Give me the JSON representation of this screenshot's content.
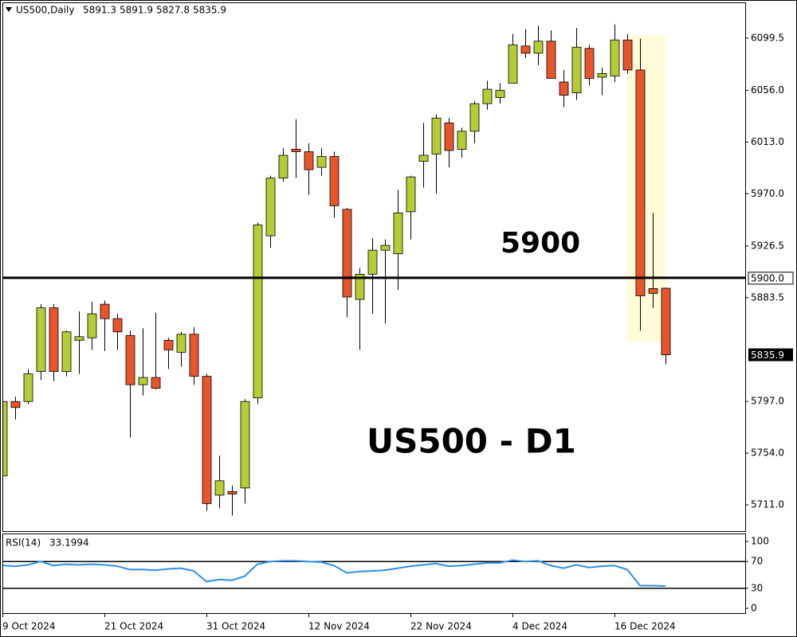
{
  "chart_data": [
    {
      "type": "candlestick",
      "symbol": "US500,Daily",
      "categories": [
        "9 Oct 2024",
        null,
        null,
        null,
        null,
        null,
        null,
        null,
        "21 Oct 2024",
        null,
        null,
        null,
        null,
        null,
        null,
        null,
        "31 Oct 2024",
        null,
        null,
        null,
        null,
        null,
        null,
        null,
        "12 Nov 2024",
        null,
        null,
        null,
        null,
        null,
        null,
        null,
        "22 Nov 2024",
        null,
        null,
        null,
        null,
        null,
        null,
        null,
        "4 Dec 2024",
        null,
        null,
        null,
        null,
        null,
        null,
        null,
        "16 Dec 2024",
        null,
        null,
        null,
        null
      ],
      "open": [
        5735,
        5797,
        5797,
        5822,
        5875,
        5822,
        5848,
        5850,
        5878,
        5866,
        5852,
        5811,
        5817,
        5848,
        5838,
        5853,
        5818,
        5719,
        5722,
        5725,
        5800,
        5935,
        5983,
        6007,
        6005,
        5992,
        6001,
        5957,
        5882,
        5903,
        5923,
        5920,
        5955,
        5997,
        6003,
        6029,
        6007,
        6022,
        6045,
        6050,
        6062,
        6093,
        6087,
        6097,
        6063,
        6054,
        6091,
        6067,
        6068,
        6098,
        6073,
        5891,
        5891.3
      ],
      "high": [
        5805,
        5801,
        5824,
        5878,
        5878,
        5856,
        5872,
        5880,
        5881,
        5870,
        5856,
        5858,
        5871,
        5850,
        5855,
        5859,
        5820,
        5752,
        5727,
        5799,
        5946,
        5985,
        6008,
        6032,
        6012,
        6008,
        6005,
        5958,
        5908,
        5933,
        5932,
        5973,
        5985,
        6029,
        6036,
        6033,
        6025,
        6047,
        6064,
        6062,
        6103,
        6107,
        6110,
        6106,
        6073,
        6108,
        6094,
        6075,
        6111,
        6103,
        6099,
        5954,
        5891.9
      ],
      "low": [
        5730,
        5782,
        5795,
        5815,
        5814,
        5818,
        5820,
        5840,
        5839,
        5840,
        5767,
        5802,
        5807,
        5824,
        5826,
        5811,
        5706,
        5708,
        5702,
        5712,
        5795,
        5925,
        5980,
        5983,
        5969,
        5985,
        5950,
        5867,
        5840,
        5870,
        5862,
        5890,
        5932,
        5975,
        5970,
        5992,
        6000,
        6012,
        6040,
        6045,
        6062,
        6083,
        6077,
        6066,
        6042,
        6048,
        6060,
        6052,
        6063,
        6070,
        5856,
        5875,
        5827.8
      ],
      "close": [
        5797,
        5792,
        5820,
        5875,
        5822,
        5855,
        5851,
        5870,
        5866,
        5855,
        5811,
        5817,
        5808,
        5840,
        5853,
        5818,
        5712,
        5731,
        5720,
        5797,
        5944,
        5983,
        6002,
        6005,
        5990,
        6001,
        5960,
        5884,
        5903,
        5923,
        5927,
        5954,
        5984,
        6002,
        6033,
        6006,
        6022,
        6045,
        6057,
        6056,
        6094,
        6087,
        6097,
        6066,
        6052,
        6092,
        6066,
        6070,
        6098,
        6073,
        5885,
        5887,
        5835.9
      ],
      "up_color": "#b5cc34",
      "down_color": "#e8552a",
      "ylim": [
        5689.1,
        6129.3
      ],
      "yticks": [
        6099.5,
        {
          "value": 6056,
          "label": "6056.0"
        },
        {
          "value": 6013,
          "label": "6013.0"
        },
        {
          "value": 5970,
          "label": "5970.0"
        },
        5926.5,
        5883.5,
        {
          "value": 5797,
          "label": "5797.0"
        },
        {
          "value": 5754,
          "label": "5754.0"
        },
        {
          "value": 5711,
          "label": "5711.0"
        }
      ],
      "hline": {
        "value": 5900,
        "label": "5900.0"
      },
      "highlight": [
        50,
        51
      ],
      "annotations": [
        "5900",
        "US500 - D1"
      ]
    },
    {
      "type": "line",
      "title": "RSI(14)",
      "color": "#2e8fe8",
      "values": [
        64,
        63,
        65,
        70,
        64,
        66,
        65,
        66,
        65,
        63,
        58,
        58,
        57,
        59,
        60,
        56,
        40,
        43,
        42,
        48,
        66,
        70,
        71,
        71,
        70,
        69,
        64,
        53,
        55,
        56,
        57,
        60,
        63,
        65,
        67,
        63,
        64,
        66,
        68,
        68,
        72,
        70,
        71,
        64,
        60,
        65,
        61,
        63,
        64,
        58,
        34,
        34,
        33.1994
      ],
      "ylim": [
        -7.1,
        111.9
      ],
      "yticks": [
        100,
        70,
        30,
        0
      ],
      "levels": [
        70,
        30
      ]
    }
  ]
}
